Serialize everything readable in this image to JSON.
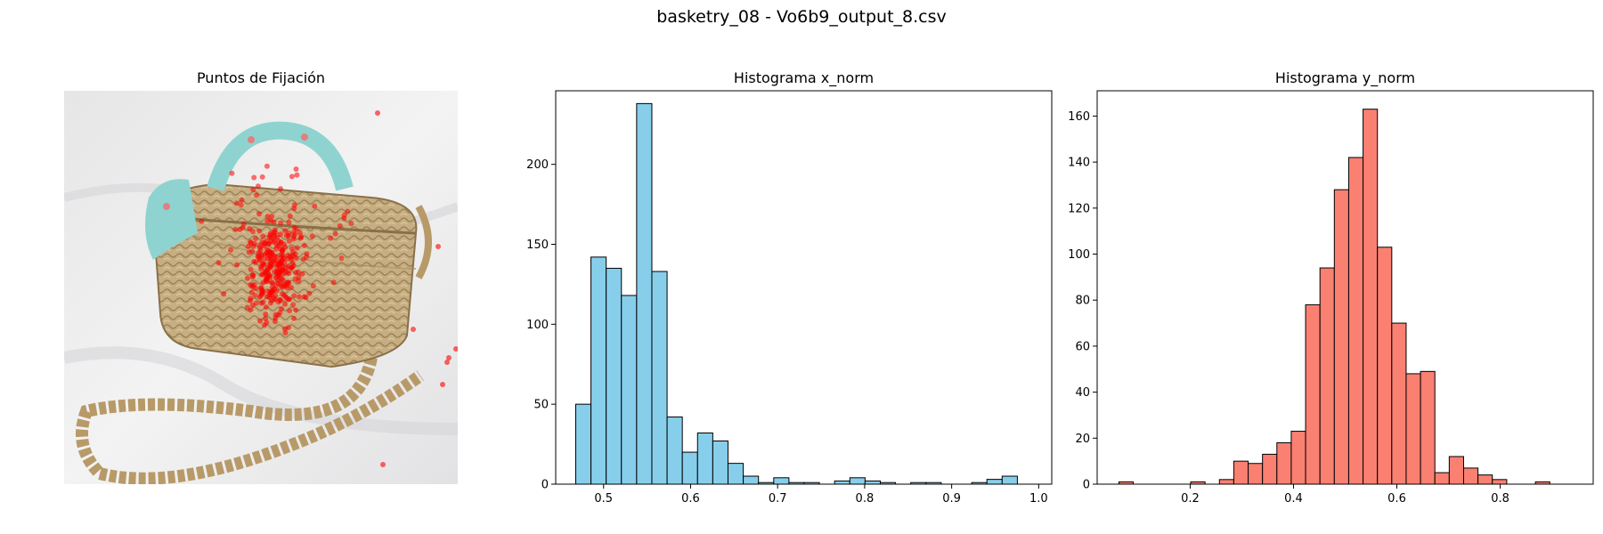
{
  "figure": {
    "suptitle": "basketry_08 - Vo6b9_output_8.csv"
  },
  "chart_data": [
    {
      "type": "scatter",
      "title": "Puntos de Fijación",
      "background": "photo of a woven straw basket with a teal floral bow on its handle and a braided strap, on a white cloth",
      "point_color": "#ff0000",
      "axis": "off",
      "points_description": "fixation points clustered on the left-center front of the basket with scattered points near the handle and right edge"
    },
    {
      "type": "bar",
      "title": "Histograma x_norm",
      "bar_color": "#87ceeb",
      "edge_color": "#000000",
      "bin_start": 0.468,
      "bin_width": 0.0175,
      "values": [
        50,
        142,
        135,
        118,
        238,
        133,
        42,
        20,
        32,
        27,
        13,
        5,
        1,
        4,
        1,
        1,
        0,
        2,
        4,
        2,
        1,
        0,
        1,
        1,
        0,
        0,
        1,
        3,
        5
      ],
      "xlim": [
        0.445,
        1.015
      ],
      "ylim": [
        0,
        246
      ],
      "xticks": [
        "0.5",
        "0.6",
        "0.7",
        "0.8",
        "0.9",
        "1.0"
      ],
      "xtick_values": [
        0.5,
        0.6,
        0.7,
        0.8,
        0.9,
        1.0
      ],
      "yticks": [
        "0",
        "50",
        "100",
        "150",
        "200"
      ],
      "ytick_values": [
        0,
        50,
        100,
        150,
        200
      ]
    },
    {
      "type": "bar",
      "title": "Histograma y_norm",
      "bar_color": "#fa8072",
      "edge_color": "#000000",
      "bin_start": 0.062,
      "bin_width": 0.0278,
      "values": [
        1,
        0,
        0,
        0,
        0,
        1,
        0,
        2,
        10,
        9,
        13,
        18,
        23,
        78,
        94,
        128,
        142,
        163,
        103,
        70,
        48,
        49,
        5,
        12,
        7,
        4,
        2,
        0,
        0,
        1
      ],
      "xlim": [
        0.02,
        0.98
      ],
      "ylim": [
        0,
        171
      ],
      "xticks": [
        "0.2",
        "0.4",
        "0.6",
        "0.8"
      ],
      "xtick_values": [
        0.2,
        0.4,
        0.6,
        0.8
      ],
      "yticks": [
        "0",
        "20",
        "40",
        "60",
        "80",
        "100",
        "120",
        "140",
        "160"
      ],
      "ytick_values": [
        0,
        20,
        40,
        60,
        80,
        100,
        120,
        140,
        160
      ]
    }
  ]
}
